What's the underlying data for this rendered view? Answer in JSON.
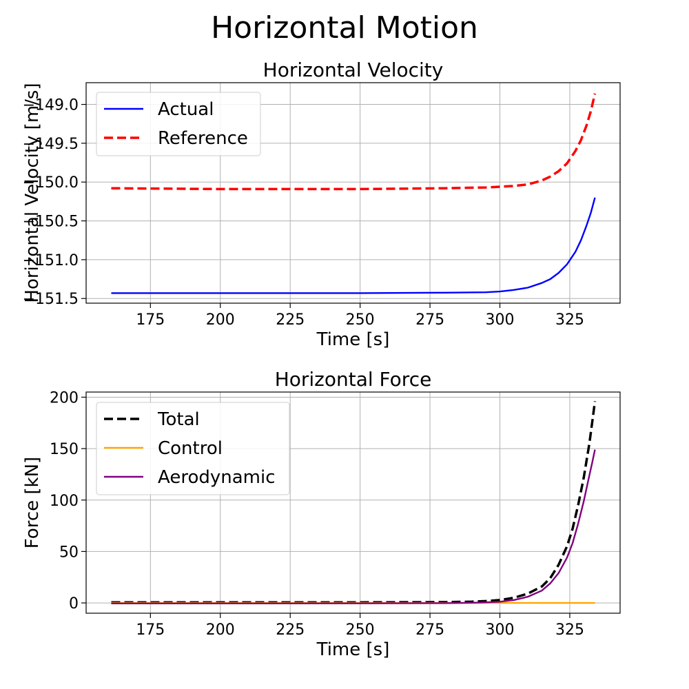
{
  "figure": {
    "title": "Horizontal Motion"
  },
  "chart_data": [
    {
      "type": "line",
      "title": "Horizontal Velocity",
      "xlabel": "Time [s]",
      "ylabel": "Horizontal Velocity [m/s]",
      "xlim": [
        152,
        343
      ],
      "ylim": [
        -151.56,
        -148.72
      ],
      "xticks": [
        175,
        200,
        225,
        250,
        275,
        300,
        325
      ],
      "yticks": [
        -151.5,
        -151.0,
        -150.5,
        -150.0,
        -149.5,
        -149.0
      ],
      "ytick_labels": [
        "−151.5",
        "−151.0",
        "−150.5",
        "−150.0",
        "−149.5",
        "−149.0"
      ],
      "grid": true,
      "legend_position": "upper-left",
      "series": [
        {
          "name": "Actual",
          "color": "#0000ff",
          "style": "solid",
          "x": [
            161,
            200,
            250,
            280,
            295,
            300,
            305,
            310,
            315,
            318,
            321,
            324,
            327,
            329,
            331,
            332.5,
            334
          ],
          "y": [
            -151.43,
            -151.43,
            -151.43,
            -151.425,
            -151.42,
            -151.41,
            -151.39,
            -151.36,
            -151.3,
            -151.25,
            -151.17,
            -151.06,
            -150.9,
            -150.75,
            -150.56,
            -150.4,
            -150.2
          ]
        },
        {
          "name": "Reference",
          "color": "#ff0000",
          "style": "dashed",
          "x": [
            161,
            200,
            250,
            280,
            295,
            300,
            305,
            310,
            315,
            318,
            321,
            324,
            327,
            329,
            331,
            332.5,
            334
          ],
          "y": [
            -150.08,
            -150.09,
            -150.09,
            -150.08,
            -150.07,
            -150.06,
            -150.05,
            -150.03,
            -149.98,
            -149.93,
            -149.86,
            -149.76,
            -149.6,
            -149.46,
            -149.27,
            -149.09,
            -148.86
          ]
        }
      ]
    },
    {
      "type": "line",
      "title": "Horizontal Force",
      "xlabel": "Time [s]",
      "ylabel": "Force [kN]",
      "xlim": [
        152,
        343
      ],
      "ylim": [
        -10,
        205
      ],
      "xticks": [
        175,
        200,
        225,
        250,
        275,
        300,
        325
      ],
      "yticks": [
        0,
        50,
        100,
        150,
        200
      ],
      "ytick_labels": [
        "0",
        "50",
        "100",
        "150",
        "200"
      ],
      "grid": true,
      "legend_position": "upper-left",
      "series": [
        {
          "name": "Total",
          "color": "#000000",
          "style": "dashed",
          "x": [
            161,
            200,
            250,
            280,
            290,
            295,
            300,
            305,
            310,
            315,
            318,
            321,
            324,
            326,
            328,
            330,
            332,
            333,
            334
          ],
          "y": [
            0.5,
            0.5,
            0.6,
            0.8,
            1.2,
            1.8,
            2.8,
            5,
            9,
            16,
            24,
            37,
            55,
            72,
            95,
            122,
            155,
            175,
            196
          ]
        },
        {
          "name": "Control",
          "color": "#ffa500",
          "style": "solid",
          "x": [
            161,
            334
          ],
          "y": [
            0,
            0
          ]
        },
        {
          "name": "Aerodynamic",
          "color": "#800080",
          "style": "solid",
          "x": [
            161,
            200,
            250,
            280,
            290,
            295,
            300,
            305,
            310,
            315,
            318,
            321,
            324,
            326,
            328,
            330,
            332,
            333,
            334
          ],
          "y": [
            -0.5,
            -0.5,
            -0.4,
            -0.2,
            0.2,
            0.6,
            1.2,
            2.8,
            6,
            12,
            19,
            29,
            44,
            58,
            77,
            99,
            124,
            136,
            149
          ]
        }
      ]
    }
  ]
}
